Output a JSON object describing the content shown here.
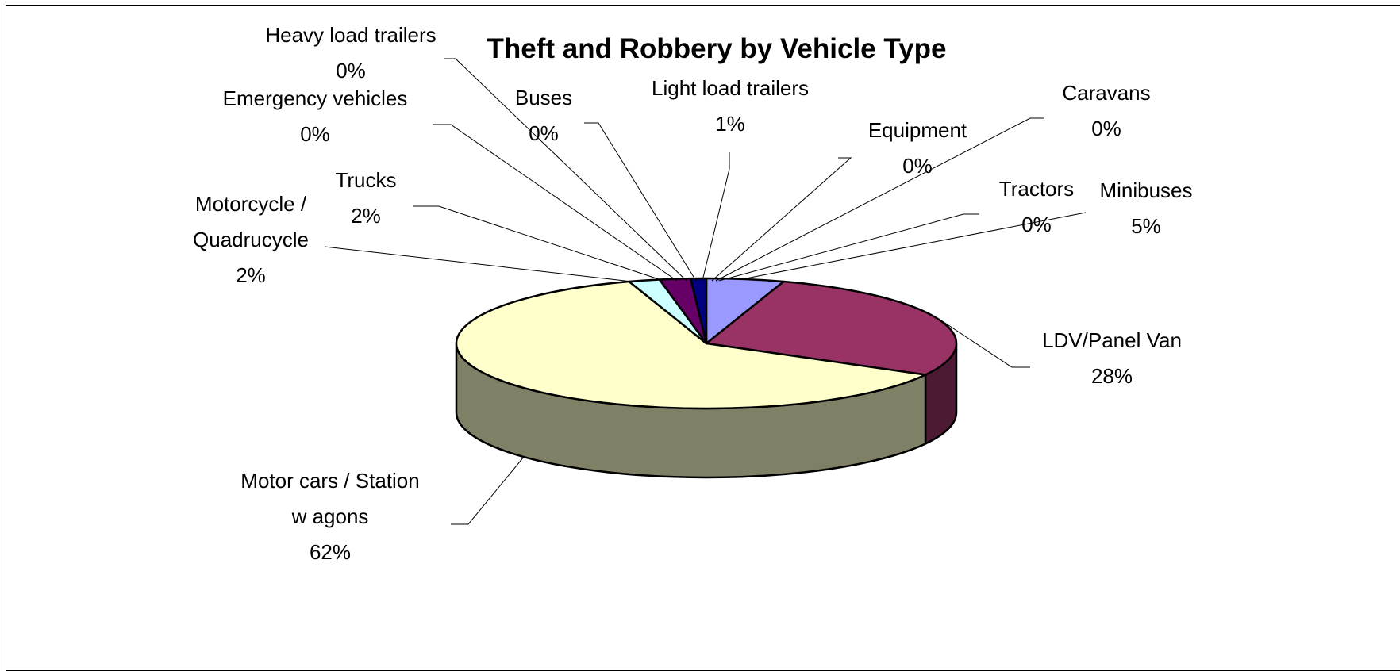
{
  "chart_data": {
    "type": "pie",
    "title": "Theft and Robbery by Vehicle Type",
    "three_d": true,
    "legend": "none",
    "slices": [
      {
        "name": "Minibuses",
        "value": 5,
        "label_lines": [
          "Minibuses",
          "5%"
        ],
        "color": "#9999ff"
      },
      {
        "name": "LDV/Panel Van",
        "value": 28,
        "label_lines": [
          "LDV/Panel Van",
          "28%"
        ],
        "color": "#993366"
      },
      {
        "name": "Motor cars / Station wagons",
        "value": 62,
        "label_lines": [
          "Motor cars / Station",
          "w agons",
          "62%"
        ],
        "color": "#ffffcc"
      },
      {
        "name": "Motorcycle / Quadrucycle",
        "value": 2,
        "label_lines": [
          "Motorcycle /",
          "Quadrucycle",
          "2%"
        ],
        "color": "#ccffff"
      },
      {
        "name": "Trucks",
        "value": 2,
        "label_lines": [
          "Trucks",
          "2%"
        ],
        "color": "#660066"
      },
      {
        "name": "Emergency vehicles",
        "value": 0,
        "label_lines": [
          "Emergency vehicles",
          "0%"
        ],
        "color": "#ff8080"
      },
      {
        "name": "Heavy load trailers",
        "value": 0,
        "label_lines": [
          "Heavy load trailers",
          "0%"
        ],
        "color": "#0066cc"
      },
      {
        "name": "Buses",
        "value": 0,
        "label_lines": [
          "Buses",
          "0%"
        ],
        "color": "#ccccff"
      },
      {
        "name": "Light load trailers",
        "value": 1,
        "label_lines": [
          "Light load trailers",
          "1%"
        ],
        "color": "#000080"
      },
      {
        "name": "Equipment",
        "value": 0,
        "label_lines": [
          "Equipment",
          "0%"
        ],
        "color": "#ff00ff"
      },
      {
        "name": "Caravans",
        "value": 0,
        "label_lines": [
          "Caravans",
          "0%"
        ],
        "color": "#ffff00"
      },
      {
        "name": "Tractors",
        "value": 0,
        "label_lines": [
          "Tractors",
          "0%"
        ],
        "color": "#00ffff"
      }
    ]
  }
}
